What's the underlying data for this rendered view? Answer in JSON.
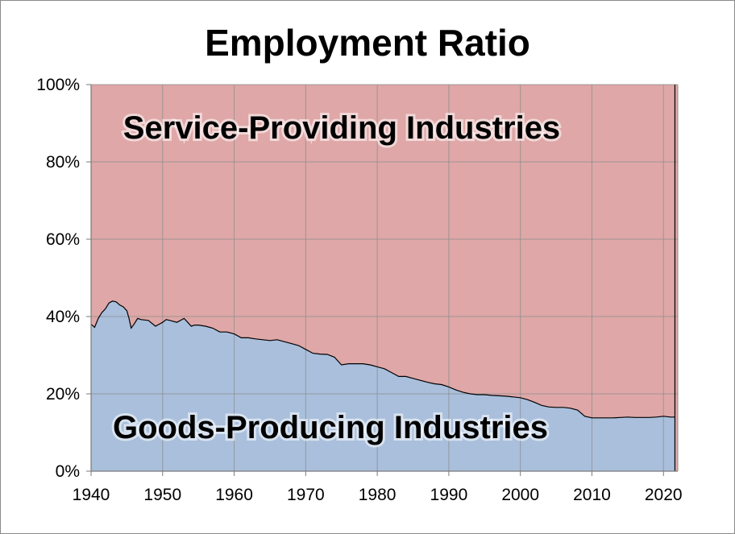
{
  "chart_data": {
    "type": "area",
    "title": "Employment Ratio",
    "xlabel": "",
    "ylabel": "",
    "xlim": [
      1940,
      2022
    ],
    "ylim": [
      0,
      100
    ],
    "y_ticks": [
      "0%",
      "20%",
      "40%",
      "60%",
      "80%",
      "100%"
    ],
    "y_tick_values": [
      0,
      20,
      40,
      60,
      80,
      100
    ],
    "x_ticks": [
      "1940",
      "1950",
      "1960",
      "1970",
      "1980",
      "1990",
      "2000",
      "2010",
      "2020"
    ],
    "x_tick_values": [
      1940,
      1950,
      1960,
      1970,
      1980,
      1990,
      2000,
      2010,
      2020
    ],
    "grid": true,
    "stacked": true,
    "annotations": {
      "services": "Service-Providing Industries",
      "goods": "Goods-Producing Industries"
    },
    "series": [
      {
        "name": "Goods-Producing Industries",
        "color": "#a9bfdc",
        "x": [
          1940,
          1940.5,
          1941,
          1941.5,
          1942,
          1942.5,
          1943,
          1943.5,
          1944,
          1944.5,
          1945,
          1945.3,
          1945.6,
          1946,
          1946.5,
          1947,
          1948,
          1949,
          1949.5,
          1950,
          1950.5,
          1951,
          1952,
          1953,
          1953.5,
          1954,
          1954.5,
          1955,
          1956,
          1957,
          1958,
          1959,
          1960,
          1961,
          1962,
          1963,
          1964,
          1965,
          1966,
          1967,
          1968,
          1969,
          1970,
          1971,
          1972,
          1973,
          1974,
          1975,
          1976,
          1977,
          1978,
          1979,
          1980,
          1981,
          1982,
          1983,
          1984,
          1985,
          1986,
          1987,
          1988,
          1989,
          1990,
          1991,
          1992,
          1993,
          1994,
          1995,
          1996,
          1997,
          1998,
          1999,
          2000,
          2001,
          2002,
          2003,
          2004,
          2005,
          2006,
          2007,
          2008,
          2009,
          2010,
          2011,
          2012,
          2013,
          2014,
          2015,
          2016,
          2017,
          2018,
          2019,
          2020,
          2021,
          2021.6
        ],
        "values": [
          38.0,
          37.2,
          39.5,
          41.0,
          42.0,
          43.5,
          44.0,
          43.8,
          43.0,
          42.5,
          41.5,
          39.5,
          37.0,
          38.0,
          39.5,
          39.2,
          39.0,
          37.5,
          38.0,
          38.5,
          39.2,
          39.0,
          38.5,
          39.5,
          38.5,
          37.5,
          37.8,
          37.8,
          37.5,
          37.0,
          36.0,
          36.0,
          35.5,
          34.5,
          34.5,
          34.2,
          34.0,
          33.8,
          34.0,
          33.5,
          33.0,
          32.5,
          31.5,
          30.5,
          30.3,
          30.2,
          29.5,
          27.5,
          27.8,
          27.8,
          27.8,
          27.5,
          27.0,
          26.5,
          25.5,
          24.5,
          24.5,
          24.0,
          23.5,
          23.0,
          22.6,
          22.4,
          21.8,
          21.0,
          20.4,
          20.0,
          19.8,
          19.8,
          19.6,
          19.5,
          19.4,
          19.2,
          19.0,
          18.5,
          17.8,
          17.0,
          16.6,
          16.5,
          16.5,
          16.3,
          15.8,
          14.2,
          13.8,
          13.8,
          13.8,
          13.8,
          13.9,
          14.0,
          13.9,
          13.9,
          13.9,
          14.0,
          14.2,
          14.0,
          14.0
        ]
      },
      {
        "name": "Service-Providing Industries",
        "color": "#dfa7a7",
        "values_note_free": true
      }
    ]
  }
}
